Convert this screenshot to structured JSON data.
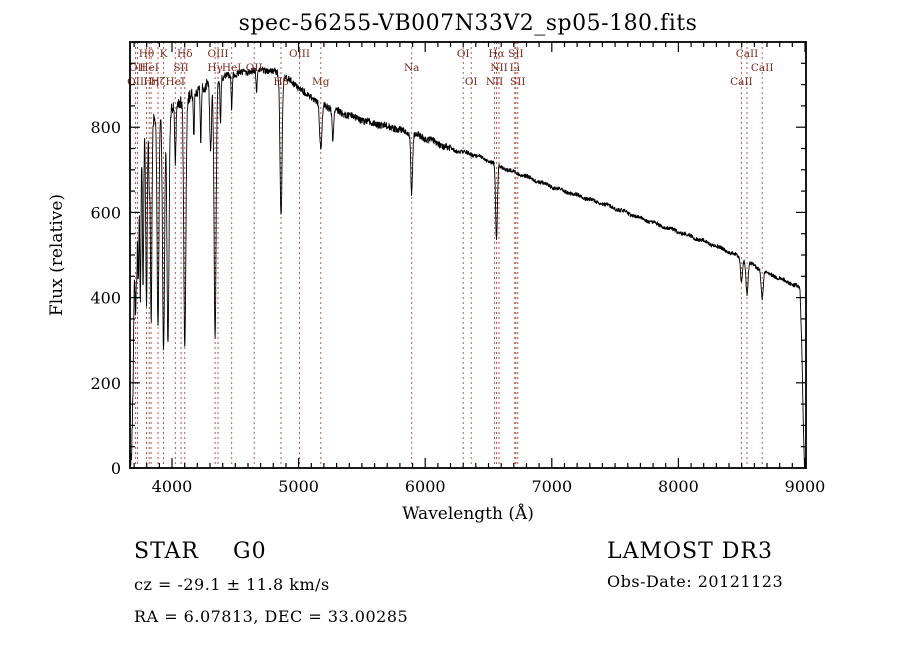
{
  "chart_data": {
    "type": "line",
    "title": "spec-56255-VB007N33V2_sp05-180.fits",
    "xlabel": "Wavelength (Å)",
    "ylabel": "Flux (relative)",
    "xlim": [
      3668,
      9008
    ],
    "ylim": [
      0,
      1000
    ],
    "xticks": [
      4000,
      5000,
      6000,
      7000,
      8000,
      9000
    ],
    "yticks": [
      0,
      200,
      400,
      600,
      800
    ],
    "x_minor_step": 100,
    "y_minor_step": 50,
    "grid": false,
    "legend": "none",
    "line_color": "#000000",
    "marker_line_color": "#b0483a",
    "marker_label_color": "#7a2a1e",
    "continuum": {
      "wavelength": [
        3668,
        3680,
        3692,
        3700,
        3708,
        3716,
        3724,
        3740,
        3760,
        3790,
        3850,
        3950,
        4050,
        4150,
        4250,
        4350,
        4450,
        4550,
        4650,
        4750,
        4850,
        4950,
        5050,
        5150,
        5250,
        5350,
        5450,
        5550,
        5650,
        5750,
        5850,
        5950,
        6050,
        6150,
        6250,
        6350,
        6450,
        6550,
        6650,
        6750,
        6850,
        6950,
        7050,
        7150,
        7250,
        7350,
        7450,
        7550,
        7650,
        7750,
        7850,
        7950,
        8050,
        8150,
        8250,
        8350,
        8450,
        8550,
        8650,
        8750,
        8850,
        8930,
        8960,
        8975,
        8988,
        8996,
        9008
      ],
      "flux": [
        0,
        30,
        180,
        420,
        600,
        700,
        760,
        790,
        805,
        812,
        820,
        835,
        855,
        875,
        895,
        910,
        922,
        928,
        933,
        935,
        925,
        905,
        880,
        860,
        845,
        832,
        822,
        812,
        805,
        798,
        790,
        780,
        768,
        755,
        745,
        738,
        728,
        715,
        700,
        690,
        678,
        666,
        655,
        645,
        635,
        625,
        615,
        604,
        592,
        581,
        570,
        560,
        549,
        538,
        526,
        514,
        500,
        483,
        466,
        452,
        438,
        428,
        420,
        280,
        90,
        0,
        0
      ]
    },
    "absorption_lines": [
      {
        "center": 3712,
        "depth": 280,
        "sigma": 5
      },
      {
        "center": 3722,
        "depth": 240,
        "sigma": 4
      },
      {
        "center": 3734,
        "depth": 330,
        "sigma": 5
      },
      {
        "center": 3750,
        "depth": 400,
        "sigma": 5
      },
      {
        "center": 3771,
        "depth": 390,
        "sigma": 5
      },
      {
        "center": 3798,
        "depth": 430,
        "sigma": 6
      },
      {
        "center": 3820,
        "depth": 160,
        "sigma": 4
      },
      {
        "center": 3835,
        "depth": 470,
        "sigma": 6
      },
      {
        "center": 3889,
        "depth": 500,
        "sigma": 7
      },
      {
        "center": 3933,
        "depth": 560,
        "sigma": 8
      },
      {
        "center": 3968,
        "depth": 545,
        "sigma": 8
      },
      {
        "center": 4026,
        "depth": 140,
        "sigma": 5
      },
      {
        "center": 4101,
        "depth": 590,
        "sigma": 8
      },
      {
        "center": 4172,
        "depth": 100,
        "sigma": 4
      },
      {
        "center": 4227,
        "depth": 120,
        "sigma": 4
      },
      {
        "center": 4305,
        "depth": 160,
        "sigma": 7
      },
      {
        "center": 4340,
        "depth": 600,
        "sigma": 8
      },
      {
        "center": 4383,
        "depth": 110,
        "sigma": 4
      },
      {
        "center": 4471,
        "depth": 80,
        "sigma": 4
      },
      {
        "center": 4668,
        "depth": 60,
        "sigma": 4
      },
      {
        "center": 4861,
        "depth": 330,
        "sigma": 8
      },
      {
        "center": 5175,
        "depth": 110,
        "sigma": 9
      },
      {
        "center": 5270,
        "depth": 70,
        "sigma": 6
      },
      {
        "center": 5893,
        "depth": 140,
        "sigma": 7
      },
      {
        "center": 6563,
        "depth": 180,
        "sigma": 7
      },
      {
        "center": 8498,
        "depth": 55,
        "sigma": 7
      },
      {
        "center": 8542,
        "depth": 75,
        "sigma": 8
      },
      {
        "center": 8662,
        "depth": 65,
        "sigma": 8
      }
    ],
    "noise": {
      "blue_amplitude": 14,
      "mid_amplitude": 8,
      "red_amplitude": 4.5
    },
    "line_markers": [
      {
        "label": "Hθ",
        "wavelength": 3798,
        "row": 1
      },
      {
        "label": "K",
        "wavelength": 3933,
        "row": 1
      },
      {
        "label": "Hδ",
        "wavelength": 4101,
        "row": 1
      },
      {
        "label": "OIII",
        "wavelength": 4363,
        "row": 1
      },
      {
        "label": "OIII",
        "wavelength": 5007,
        "row": 1
      },
      {
        "label": "OI",
        "wavelength": 6300,
        "row": 1
      },
      {
        "label": "Hα",
        "wavelength": 6563,
        "row": 1
      },
      {
        "label": "SII",
        "wavelength": 6716,
        "row": 1
      },
      {
        "label": "CaII",
        "wavelength": 8542,
        "row": 1
      },
      {
        "label": "OII",
        "wavelength": 3727,
        "row": 2
      },
      {
        "label": "HeI",
        "wavelength": 3820,
        "row": 2
      },
      {
        "label": "SII",
        "wavelength": 4072,
        "row": 2
      },
      {
        "label": "Hγ",
        "wavelength": 4340,
        "row": 2
      },
      {
        "label": "HeI",
        "wavelength": 4471,
        "row": 2
      },
      {
        "label": "OII",
        "wavelength": 4649,
        "row": 2
      },
      {
        "label": "Na",
        "wavelength": 5893,
        "row": 2
      },
      {
        "label": "NII",
        "wavelength": 6583,
        "row": 2
      },
      {
        "label": "Li",
        "wavelength": 6708,
        "row": 2
      },
      {
        "label": "CaII",
        "wavelength": 8662,
        "row": 2
      },
      {
        "label": "OII",
        "wavelength": 3712,
        "row": 3
      },
      {
        "label": "Hη",
        "wavelength": 3835,
        "row": 3
      },
      {
        "label": "Hζ",
        "wavelength": 3889,
        "row": 3
      },
      {
        "label": "HeI",
        "wavelength": 4026,
        "row": 3
      },
      {
        "label": "Hβ",
        "wavelength": 4861,
        "row": 3
      },
      {
        "label": "Mg",
        "wavelength": 5175,
        "row": 3
      },
      {
        "label": "OI",
        "wavelength": 6363,
        "row": 3
      },
      {
        "label": "NII",
        "wavelength": 6548,
        "row": 3
      },
      {
        "label": "SII",
        "wavelength": 6731,
        "row": 3
      },
      {
        "label": "CaII",
        "wavelength": 8498,
        "row": 3
      }
    ]
  },
  "footer": {
    "star_class": "STAR",
    "subclass": "G0",
    "survey": "LAMOST DR3",
    "cz": "cz = -29.1 ± 11.8 km/s",
    "obs_date": "Obs-Date: 20121123",
    "ra_dec": "RA =  6.07813, DEC =  33.00285"
  }
}
